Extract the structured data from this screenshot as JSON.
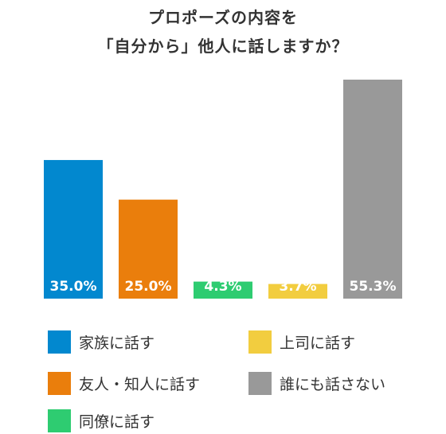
{
  "chart_data": {
    "type": "bar",
    "title": [
      "プロポーズの内容を",
      "「自分から」他人に話しますか？"
    ],
    "categories": [
      "家族に話す",
      "友人・知人に話す",
      "同僚に話す",
      "上司に話す",
      "誰にも話さない"
    ],
    "values": [
      35.0,
      25.0,
      4.3,
      3.7,
      55.3
    ],
    "data_labels": [
      "35.0%",
      "25.0%",
      "4.3%",
      "3.7%",
      "55.3%"
    ],
    "colors": [
      "#0288cf",
      "#ea7e0c",
      "#2ecc71",
      "#f2cd3f",
      "#999999"
    ],
    "ylim": [
      0,
      55.3
    ],
    "unit": "%",
    "legend": "bottom",
    "grid": false,
    "xlabel": "",
    "ylabel": ""
  }
}
